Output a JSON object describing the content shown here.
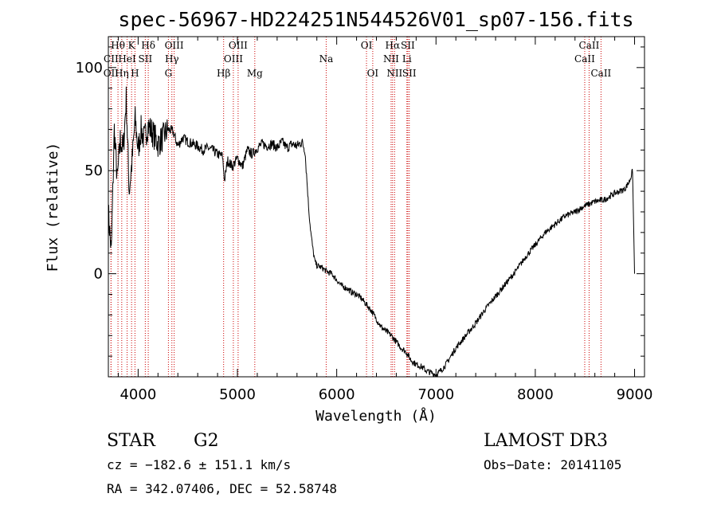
{
  "chart_data": {
    "type": "line",
    "title": "spec-56967-HD224251N544526V01_sp07-156.fits",
    "xlabel": "Wavelength (Å)",
    "ylabel": "Flux (relative)",
    "xlim": [
      3700,
      9100
    ],
    "ylim": [
      -50,
      115
    ],
    "x_ticks": [
      4000,
      5000,
      6000,
      7000,
      8000,
      9000
    ],
    "y_ticks": [
      0,
      50,
      100
    ],
    "grid": false,
    "series": [
      {
        "name": "",
        "color": "#000000",
        "x": [
          3700,
          3730,
          3760,
          3790,
          3820,
          3850,
          3880,
          3910,
          3940,
          3970,
          4000,
          4030,
          4060,
          4100,
          4150,
          4200,
          4250,
          4300,
          4350,
          4400,
          4450,
          4500,
          4550,
          4600,
          4650,
          4700,
          4750,
          4800,
          4850,
          4870,
          4900,
          4950,
          5000,
          5050,
          5100,
          5150,
          5200,
          5250,
          5300,
          5350,
          5400,
          5450,
          5500,
          5550,
          5600,
          5650,
          5680,
          5700,
          5720,
          5740,
          5760,
          5780,
          5800,
          5850,
          5900,
          5950,
          6000,
          6050,
          6100,
          6150,
          6200,
          6250,
          6300,
          6350,
          6400,
          6450,
          6500,
          6550,
          6600,
          6650,
          6700,
          6750,
          6800,
          6850,
          6900,
          6950,
          7000,
          7050,
          7100,
          7150,
          7200,
          7300,
          7400,
          7500,
          7600,
          7700,
          7800,
          7900,
          8000,
          8100,
          8200,
          8300,
          8400,
          8500,
          8600,
          8700,
          8800,
          8900,
          8950,
          8980,
          9000
        ],
        "y": [
          30,
          10,
          70,
          45,
          65,
          60,
          85,
          40,
          55,
          75,
          60,
          70,
          65,
          72,
          68,
          63,
          66,
          70,
          69,
          62,
          66,
          64,
          63,
          62,
          60,
          61,
          60,
          58,
          57,
          45,
          55,
          52,
          56,
          52,
          60,
          58,
          61,
          63,
          62,
          63,
          61,
          64,
          61,
          63,
          62,
          64,
          60,
          45,
          30,
          20,
          12,
          6,
          4,
          3,
          1,
          0,
          -3,
          -6,
          -7,
          -9,
          -10,
          -12,
          -15,
          -18,
          -22,
          -26,
          -28,
          -30,
          -33,
          -36,
          -38,
          -42,
          -44,
          -45,
          -47,
          -48,
          -49,
          -47,
          -44,
          -40,
          -36,
          -30,
          -24,
          -17,
          -11,
          -5,
          1,
          8,
          14,
          20,
          24,
          28,
          30,
          33,
          35,
          36,
          39,
          41,
          45,
          50,
          0
        ]
      }
    ],
    "line_markers": [
      {
        "label": "CII",
        "x": 3727,
        "row": 2
      },
      {
        "label": "OII",
        "x": 3727,
        "row": 3
      },
      {
        "label": "Hθ",
        "x": 3797,
        "row": 1
      },
      {
        "label": "Hη",
        "x": 3835,
        "row": 3
      },
      {
        "label": "HeI",
        "x": 3889,
        "row": 2
      },
      {
        "label": "K",
        "x": 3934,
        "row": 1
      },
      {
        "label": "H",
        "x": 3968,
        "row": 3
      },
      {
        "label": "SII",
        "x": 4072,
        "row": 2
      },
      {
        "label": "Hδ",
        "x": 4102,
        "row": 1
      },
      {
        "label": "G",
        "x": 4305,
        "row": 3
      },
      {
        "label": "Hγ",
        "x": 4340,
        "row": 2
      },
      {
        "label": "OIII",
        "x": 4363,
        "row": 1
      },
      {
        "label": "Hβ",
        "x": 4861,
        "row": 3
      },
      {
        "label": "OIII",
        "x": 4959,
        "row": 2
      },
      {
        "label": "OIII",
        "x": 5007,
        "row": 1
      },
      {
        "label": "Mg",
        "x": 5175,
        "row": 3
      },
      {
        "label": "Na",
        "x": 5894,
        "row": 2
      },
      {
        "label": "OI",
        "x": 6300,
        "row": 1
      },
      {
        "label": "OI",
        "x": 6363,
        "row": 3
      },
      {
        "label": "NII",
        "x": 6548,
        "row": 2
      },
      {
        "label": "Hα",
        "x": 6563,
        "row": 1
      },
      {
        "label": "NII",
        "x": 6583,
        "row": 3
      },
      {
        "label": "Li",
        "x": 6707,
        "row": 2
      },
      {
        "label": "SII",
        "x": 6716,
        "row": 1
      },
      {
        "label": "SII",
        "x": 6731,
        "row": 3
      },
      {
        "label": "CaII",
        "x": 8498,
        "row": 2
      },
      {
        "label": "CaII",
        "x": 8542,
        "row": 1
      },
      {
        "label": "CaII",
        "x": 8662,
        "row": 3
      }
    ],
    "marker_color": "#cc0000"
  },
  "info": {
    "class": "STAR",
    "subclass": "G2",
    "survey": "LAMOST DR3",
    "cz": "cz = −182.6 ± 151.1 km/s",
    "obs_date": "Obs−Date: 20141105",
    "radec": "RA = 342.07406, DEC =  52.58748"
  }
}
